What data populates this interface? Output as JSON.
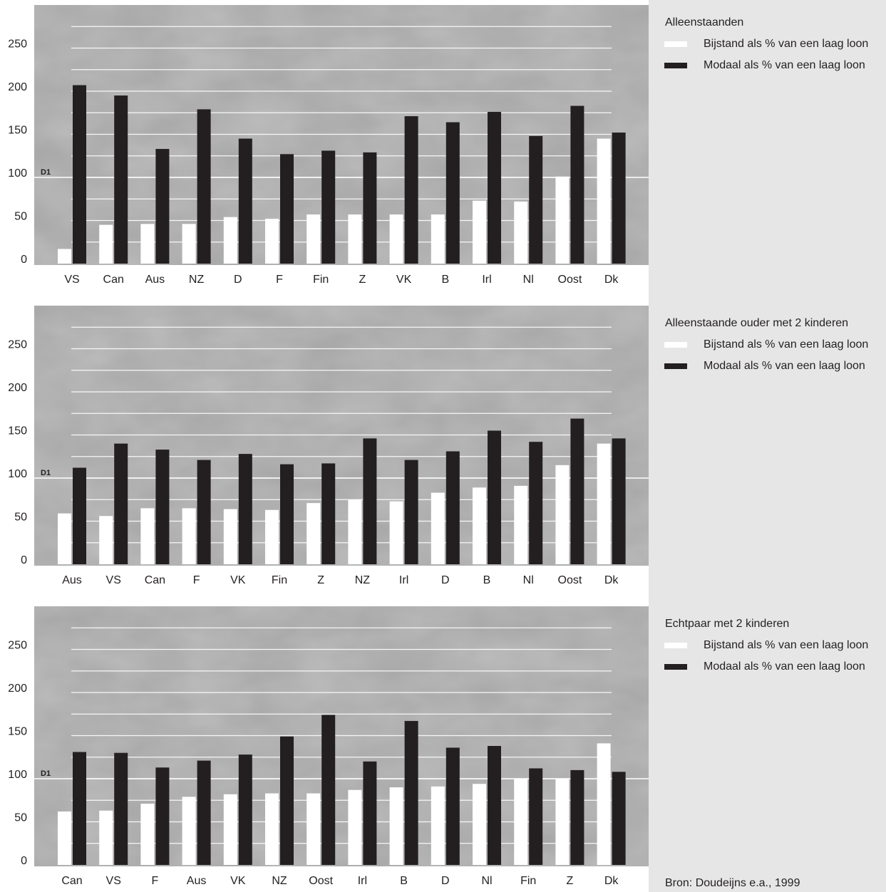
{
  "chart_data": [
    {
      "type": "bar",
      "title": "Alleenstaanden",
      "categories": [
        "VS",
        "Can",
        "Aus",
        "NZ",
        "D",
        "F",
        "Fin",
        "Z",
        "VK",
        "B",
        "Irl",
        "Nl",
        "Oost",
        "Dk"
      ],
      "series": [
        {
          "name": "Bijstand als % van een laag loon",
          "color": "#ffffff",
          "values": [
            17,
            45,
            46,
            46,
            54,
            52,
            57,
            57,
            57,
            57,
            73,
            72,
            101,
            145
          ]
        },
        {
          "name": "Modaal als % van een laag loon",
          "color": "#231f20",
          "values": [
            207,
            195,
            133,
            179,
            145,
            127,
            131,
            129,
            171,
            164,
            176,
            148,
            183,
            152
          ]
        }
      ],
      "ylim": [
        0,
        300
      ],
      "yticks": [
        0,
        50,
        100,
        150,
        200,
        250
      ],
      "gridlines": [
        25,
        50,
        75,
        100,
        125,
        150,
        175,
        200,
        225,
        250,
        275
      ],
      "annotation": {
        "text": "D1",
        "value": 100
      }
    },
    {
      "type": "bar",
      "title": "Alleenstaande ouder met 2 kinderen",
      "categories": [
        "Aus",
        "VS",
        "Can",
        "F",
        "VK",
        "Fin",
        "Z",
        "NZ",
        "Irl",
        "D",
        "B",
        "Nl",
        "Oost",
        "Dk"
      ],
      "series": [
        {
          "name": "Bijstand als % van een laag loon",
          "color": "#ffffff",
          "values": [
            59,
            56,
            65,
            65,
            64,
            63,
            71,
            75,
            73,
            83,
            89,
            91,
            115,
            140
          ]
        },
        {
          "name": "Modaal als % van een laag loon",
          "color": "#231f20",
          "values": [
            112,
            140,
            133,
            121,
            128,
            116,
            117,
            146,
            121,
            131,
            155,
            142,
            169,
            146
          ]
        }
      ],
      "ylim": [
        0,
        300
      ],
      "yticks": [
        0,
        50,
        100,
        150,
        200,
        250
      ],
      "gridlines": [
        25,
        50,
        75,
        100,
        125,
        150,
        175,
        200,
        225,
        250,
        275
      ],
      "annotation": {
        "text": "D1",
        "value": 100
      }
    },
    {
      "type": "bar",
      "title": "Echtpaar met 2 kinderen",
      "categories": [
        "Can",
        "VS",
        "F",
        "Aus",
        "VK",
        "NZ",
        "Oost",
        "Irl",
        "B",
        "D",
        "Nl",
        "Fin",
        "Z",
        "Dk"
      ],
      "series": [
        {
          "name": "Bijstand als % van een laag loon",
          "color": "#ffffff",
          "values": [
            62,
            63,
            71,
            79,
            82,
            83,
            83,
            87,
            90,
            91,
            94,
            100,
            100,
            141
          ]
        },
        {
          "name": "Modaal als % van een laag loon",
          "color": "#231f20",
          "values": [
            131,
            130,
            113,
            121,
            128,
            149,
            174,
            120,
            167,
            136,
            138,
            112,
            110,
            108
          ]
        }
      ],
      "ylim": [
        0,
        300
      ],
      "yticks": [
        0,
        50,
        100,
        150,
        200,
        250
      ],
      "gridlines": [
        25,
        50,
        75,
        100,
        125,
        150,
        175,
        200,
        225,
        250,
        275
      ],
      "annotation": {
        "text": "D1",
        "value": 100
      }
    }
  ],
  "source": "Bron: Doudeijns e.a., 1999"
}
